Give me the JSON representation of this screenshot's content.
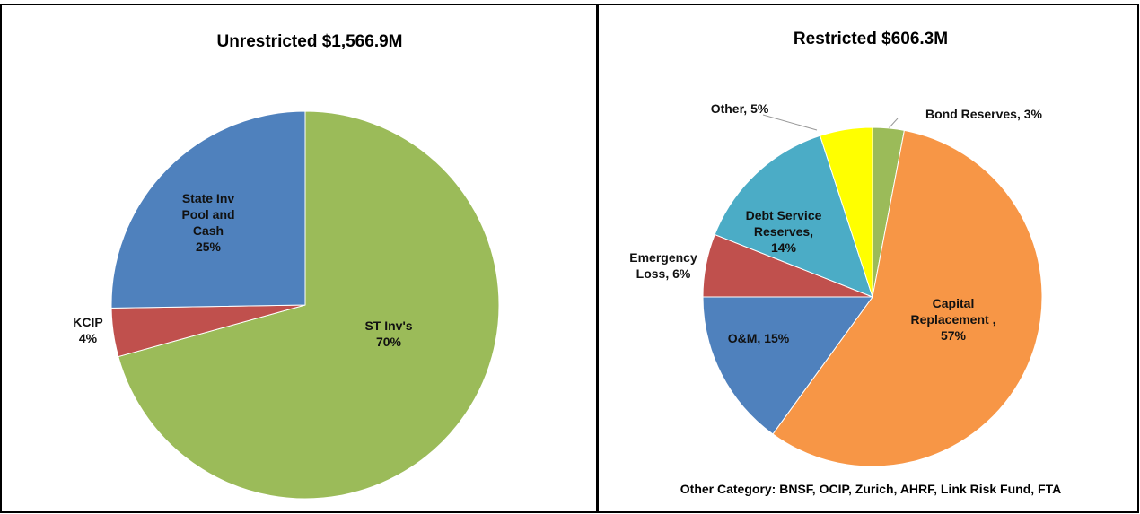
{
  "chart_data": [
    {
      "type": "pie",
      "title": "Unrestricted $1,566.9M",
      "categories": [
        "ST Inv's",
        "KCIP",
        "State Inv Pool and Cash"
      ],
      "values": [
        70,
        4,
        25
      ],
      "value_labels": [
        "70%",
        "4%",
        "25%"
      ],
      "colors": [
        "#9bbb59",
        "#c0504d",
        "#4f81bd"
      ]
    },
    {
      "type": "pie",
      "title": "Restricted $606.3M",
      "categories": [
        "Bond Reserves,",
        "Capital Replacement ,",
        "O&M,",
        "Emergency Loss,",
        "Debt Service Reserves,",
        "Other,"
      ],
      "values": [
        3,
        57,
        15,
        6,
        14,
        5
      ],
      "value_labels": [
        "3%",
        "57%",
        "15%",
        "6%",
        "14%",
        "5%"
      ],
      "colors": [
        "#9bbb59",
        "#f79646",
        "#4f81bd",
        "#c0504d",
        "#4bacc6",
        "#ffff00"
      ],
      "annotation": "Other Category: BNSF, OCIP, Zurich, AHRF, Link Risk Fund, FTA"
    }
  ]
}
